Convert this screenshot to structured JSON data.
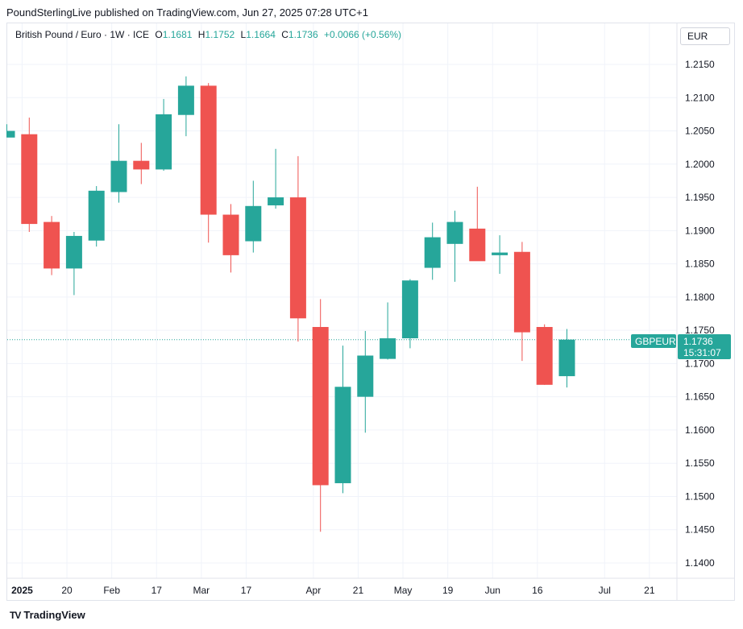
{
  "header": {
    "publisher": "PoundSterlingLive published on TradingView.com, Jun 27, 2025 07:28 UTC+1"
  },
  "legend": {
    "symbol": "British Pound / Euro · 1W · ICE",
    "o_label": "O",
    "o_value": "1.1681",
    "h_label": "H",
    "h_value": "1.1752",
    "l_label": "L",
    "l_value": "1.1664",
    "c_label": "C",
    "c_value": "1.1736",
    "change": "+0.0066 (+0.56%)"
  },
  "currency_button": "EUR",
  "price_tag": {
    "symbol": "GBPEUR",
    "price": "1.1736",
    "countdown": "15:31:07"
  },
  "brand": {
    "name": "TradingView",
    "logo_mark": "TV"
  },
  "colors": {
    "up": "#26a69a",
    "down": "#ef5350",
    "grid": "#f0f3fa",
    "text": "#131722"
  },
  "chart_data": {
    "type": "candlestick",
    "title": "British Pound / Euro · 1W · ICE",
    "ylim": [
      1.1365,
      1.2205
    ],
    "y_ticks": [
      "1.1400",
      "1.1450",
      "1.1500",
      "1.1550",
      "1.1600",
      "1.1650",
      "1.1700",
      "1.1750",
      "1.1800",
      "1.1850",
      "1.1900",
      "1.1950",
      "1.2000",
      "1.2050",
      "1.2100",
      "1.2150"
    ],
    "x_ticks": [
      {
        "label": "2025",
        "index": 0.7,
        "bold": true
      },
      {
        "label": "20",
        "index": 2.7
      },
      {
        "label": "Feb",
        "index": 4.7
      },
      {
        "label": "17",
        "index": 6.7
      },
      {
        "label": "Mar",
        "index": 8.7
      },
      {
        "label": "17",
        "index": 10.7
      },
      {
        "label": "Apr",
        "index": 13.7
      },
      {
        "label": "21",
        "index": 15.7
      },
      {
        "label": "May",
        "index": 17.7
      },
      {
        "label": "19",
        "index": 19.7
      },
      {
        "label": "Jun",
        "index": 21.7
      },
      {
        "label": "16",
        "index": 23.7
      },
      {
        "label": "Jul",
        "index": 26.7
      },
      {
        "label": "21",
        "index": 28.7
      }
    ],
    "candles": [
      {
        "o": 1.204,
        "h": 1.206,
        "l": 1.204,
        "c": 1.205
      },
      {
        "o": 1.2045,
        "h": 1.207,
        "l": 1.1898,
        "c": 1.191
      },
      {
        "o": 1.1913,
        "h": 1.1922,
        "l": 1.1833,
        "c": 1.1843
      },
      {
        "o": 1.1843,
        "h": 1.1898,
        "l": 1.1803,
        "c": 1.1892
      },
      {
        "o": 1.1885,
        "h": 1.1967,
        "l": 1.1876,
        "c": 1.196
      },
      {
        "o": 1.1958,
        "h": 1.206,
        "l": 1.1942,
        "c": 1.2005
      },
      {
        "o": 1.2005,
        "h": 1.2032,
        "l": 1.197,
        "c": 1.1992
      },
      {
        "o": 1.1992,
        "h": 1.2098,
        "l": 1.199,
        "c": 1.2075
      },
      {
        "o": 1.2074,
        "h": 1.2132,
        "l": 1.2042,
        "c": 1.2118
      },
      {
        "o": 1.2118,
        "h": 1.2122,
        "l": 1.1882,
        "c": 1.1924
      },
      {
        "o": 1.1924,
        "h": 1.194,
        "l": 1.1837,
        "c": 1.1863
      },
      {
        "o": 1.1884,
        "h": 1.1975,
        "l": 1.1867,
        "c": 1.1937
      },
      {
        "o": 1.1938,
        "h": 1.2023,
        "l": 1.1933,
        "c": 1.195
      },
      {
        "o": 1.195,
        "h": 1.2012,
        "l": 1.1733,
        "c": 1.1768
      },
      {
        "o": 1.1755,
        "h": 1.1797,
        "l": 1.1447,
        "c": 1.1517
      },
      {
        "o": 1.152,
        "h": 1.1727,
        "l": 1.1505,
        "c": 1.1665
      },
      {
        "o": 1.165,
        "h": 1.1749,
        "l": 1.1596,
        "c": 1.1712
      },
      {
        "o": 1.1707,
        "h": 1.1792,
        "l": 1.1706,
        "c": 1.1738
      },
      {
        "o": 1.1738,
        "h": 1.1827,
        "l": 1.1723,
        "c": 1.1825
      },
      {
        "o": 1.1844,
        "h": 1.1912,
        "l": 1.1826,
        "c": 1.189
      },
      {
        "o": 1.188,
        "h": 1.193,
        "l": 1.1823,
        "c": 1.1913
      },
      {
        "o": 1.1903,
        "h": 1.1966,
        "l": 1.1855,
        "c": 1.1854
      },
      {
        "o": 1.1863,
        "h": 1.1893,
        "l": 1.1835,
        "c": 1.1867
      },
      {
        "o": 1.1868,
        "h": 1.1883,
        "l": 1.1704,
        "c": 1.1747
      },
      {
        "o": 1.1755,
        "h": 1.1759,
        "l": 1.1668,
        "c": 1.1668
      },
      {
        "o": 1.1681,
        "h": 1.1752,
        "l": 1.1664,
        "c": 1.1736
      }
    ],
    "last_price": 1.1736
  }
}
